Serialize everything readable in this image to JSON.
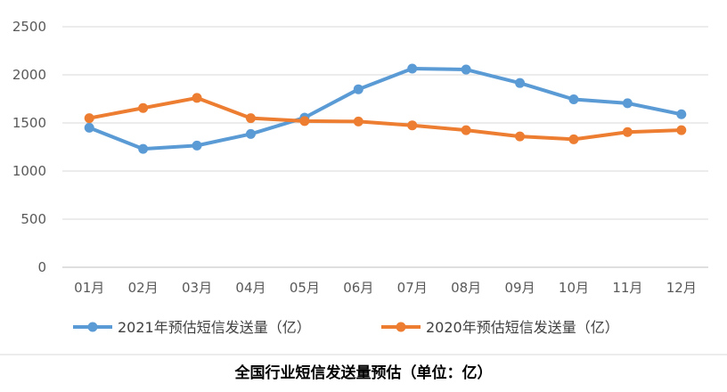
{
  "chart_data": {
    "type": "line",
    "title": "全国行业短信发送量预估（单位：亿）",
    "xlabel": "",
    "ylabel": "",
    "categories": [
      "01月",
      "02月",
      "03月",
      "04月",
      "05月",
      "06月",
      "07月",
      "08月",
      "09月",
      "10月",
      "11月",
      "12月"
    ],
    "ylim": [
      0,
      2500
    ],
    "yticks": [
      0,
      500,
      1000,
      1500,
      2000,
      2500
    ],
    "grid": true,
    "legend_position": "bottom",
    "series": [
      {
        "name": "2021年预估短信发送量（亿）",
        "color": "#5B9BD5",
        "values": [
          1450,
          1230,
          1265,
          1385,
          1555,
          1850,
          2065,
          2055,
          1915,
          1745,
          1705,
          1590
        ]
      },
      {
        "name": "2020年预估短信发送量（亿）",
        "color": "#ED7D31",
        "values": [
          1550,
          1655,
          1760,
          1550,
          1520,
          1515,
          1475,
          1425,
          1360,
          1330,
          1405,
          1425
        ]
      }
    ]
  }
}
